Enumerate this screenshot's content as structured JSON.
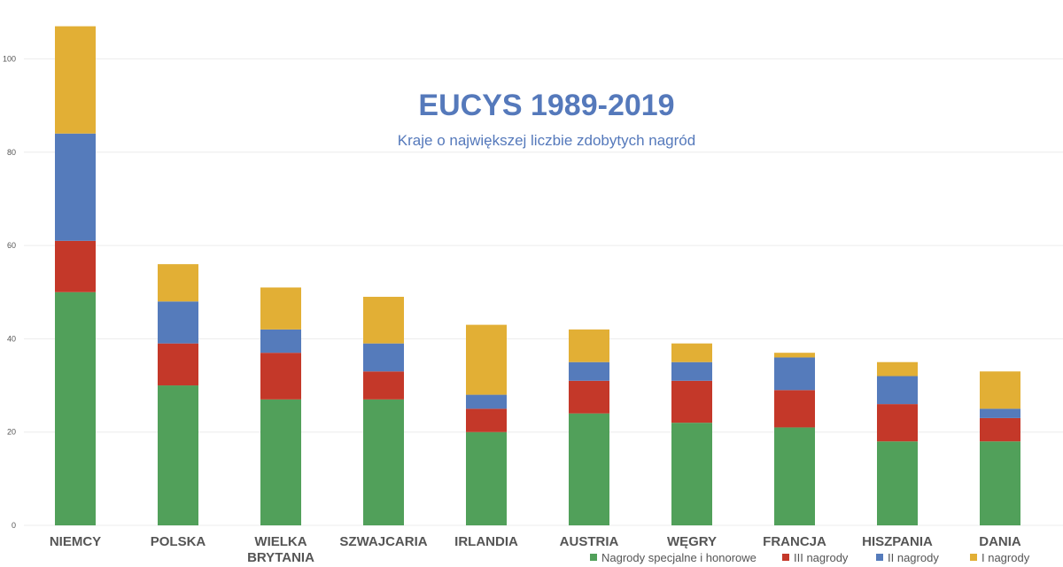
{
  "chart_data": {
    "type": "bar",
    "stacked": true,
    "title": "EUCYS 1989-2019",
    "subtitle": "Kraje o największej liczbie zdobytych nagród",
    "xlabel": "",
    "ylabel": "",
    "ylim": [
      0,
      110
    ],
    "yticks": [
      0,
      20,
      40,
      60,
      80,
      100
    ],
    "grid": true,
    "legend_position": "bottom-right",
    "categories": [
      [
        "NIEMCY"
      ],
      [
        "POLSKA"
      ],
      [
        "WIELKA",
        "BRYTANIA"
      ],
      [
        "SZWAJCARIA"
      ],
      [
        "IRLANDIA"
      ],
      [
        "AUSTRIA"
      ],
      [
        "WĘGRY"
      ],
      [
        "FRANCJA"
      ],
      [
        "HISZPANIA"
      ],
      [
        "DANIA"
      ]
    ],
    "series": [
      {
        "name": "Nagrody specjalne i honorowe",
        "color": "#51a05a",
        "values": [
          50,
          30,
          27,
          27,
          20,
          24,
          22,
          21,
          18,
          18
        ]
      },
      {
        "name": "III nagrody",
        "color": "#c43829",
        "values": [
          11,
          9,
          10,
          6,
          5,
          7,
          9,
          8,
          8,
          5
        ]
      },
      {
        "name": "II nagrody",
        "color": "#557bbb",
        "values": [
          23,
          9,
          5,
          6,
          3,
          4,
          4,
          7,
          6,
          2
        ]
      },
      {
        "name": "I nagrody",
        "color": "#e2af35",
        "values": [
          23,
          8,
          9,
          10,
          15,
          7,
          4,
          1,
          3,
          8
        ]
      }
    ]
  }
}
